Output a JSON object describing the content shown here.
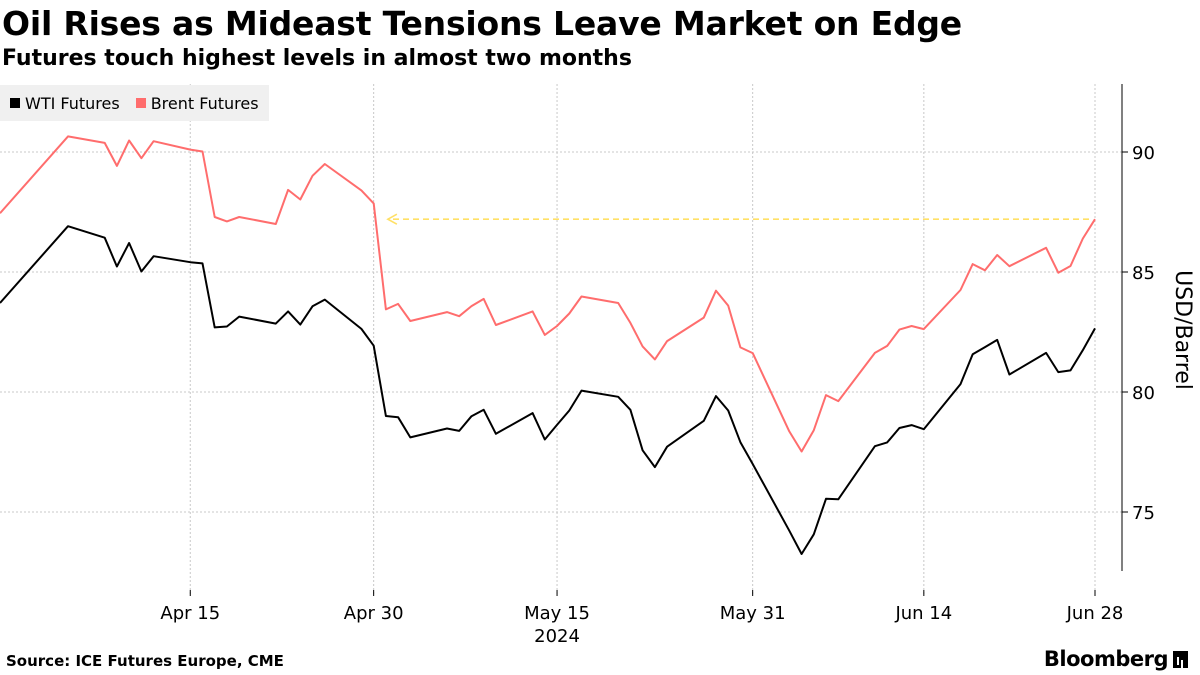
{
  "header": {
    "title": "Oil Rises as Mideast Tensions Leave Market on Edge",
    "subtitle": "Futures touch highest levels in almost two months"
  },
  "legend": {
    "items": [
      {
        "label": "WTI Futures",
        "color": "#000000"
      },
      {
        "label": "Brent Futures",
        "color": "#ff6d6d"
      }
    ]
  },
  "footer": {
    "source": "Source: ICE Futures Europe, CME",
    "brand": "Bloomberg"
  },
  "chart_data": {
    "type": "line",
    "ylabel": "USD/Barrel",
    "ylim": [
      72,
      92.5
    ],
    "yticks": [
      75,
      80,
      85,
      90
    ],
    "x_start": "2024-04-05",
    "x_end": "2024-06-28",
    "xticks": [
      {
        "date": "2024-04-15",
        "label": "Apr 15"
      },
      {
        "date": "2024-04-30",
        "label": "Apr 30"
      },
      {
        "date": "2024-05-15",
        "label": "May 15"
      },
      {
        "date": "2024-05-31",
        "label": "May 31"
      },
      {
        "date": "2024-06-14",
        "label": "Jun 14"
      },
      {
        "date": "2024-06-28",
        "label": "Jun 28"
      }
    ],
    "year_label": "2024",
    "grid": true,
    "legend_position": "top-left",
    "annotation": {
      "type": "dashed-arrow",
      "color": "#ffe066",
      "from_date": "2024-06-28",
      "to_date": "2024-05-01",
      "value": 87.2
    },
    "series": [
      {
        "name": "WTI Futures",
        "color": "#000000",
        "points": [
          [
            "2024-04-05",
            86.91
          ],
          [
            "2024-04-08",
            86.43
          ],
          [
            "2024-04-09",
            85.23
          ],
          [
            "2024-04-10",
            86.21
          ],
          [
            "2024-04-11",
            85.02
          ],
          [
            "2024-04-12",
            85.66
          ],
          [
            "2024-04-15",
            85.41
          ],
          [
            "2024-04-16",
            85.36
          ],
          [
            "2024-04-17",
            82.69
          ],
          [
            "2024-04-18",
            82.73
          ],
          [
            "2024-04-19",
            83.14
          ],
          [
            "2024-04-22",
            82.85
          ],
          [
            "2024-04-23",
            83.36
          ],
          [
            "2024-04-24",
            82.81
          ],
          [
            "2024-04-25",
            83.57
          ],
          [
            "2024-04-26",
            83.85
          ],
          [
            "2024-04-29",
            82.63
          ],
          [
            "2024-04-30",
            81.93
          ],
          [
            "2024-05-01",
            79.0
          ],
          [
            "2024-05-02",
            78.95
          ],
          [
            "2024-05-03",
            78.11
          ],
          [
            "2024-05-06",
            78.48
          ],
          [
            "2024-05-07",
            78.38
          ],
          [
            "2024-05-08",
            78.99
          ],
          [
            "2024-05-09",
            79.26
          ],
          [
            "2024-05-10",
            78.26
          ],
          [
            "2024-05-13",
            79.12
          ],
          [
            "2024-05-14",
            78.02
          ],
          [
            "2024-05-15",
            78.63
          ],
          [
            "2024-05-16",
            79.23
          ],
          [
            "2024-05-17",
            80.06
          ],
          [
            "2024-05-20",
            79.8
          ],
          [
            "2024-05-21",
            79.26
          ],
          [
            "2024-05-22",
            77.57
          ],
          [
            "2024-05-23",
            76.87
          ],
          [
            "2024-05-24",
            77.72
          ],
          [
            "2024-05-27",
            78.8
          ],
          [
            "2024-05-28",
            79.83
          ],
          [
            "2024-05-29",
            79.23
          ],
          [
            "2024-05-30",
            77.91
          ],
          [
            "2024-05-31",
            77.0
          ],
          [
            "2024-06-03",
            74.22
          ],
          [
            "2024-06-04",
            73.25
          ],
          [
            "2024-06-05",
            74.07
          ],
          [
            "2024-06-06",
            75.55
          ],
          [
            "2024-06-07",
            75.53
          ],
          [
            "2024-06-10",
            77.74
          ],
          [
            "2024-06-11",
            77.9
          ],
          [
            "2024-06-12",
            78.5
          ],
          [
            "2024-06-13",
            78.62
          ],
          [
            "2024-06-14",
            78.45
          ],
          [
            "2024-06-17",
            80.33
          ],
          [
            "2024-06-18",
            81.57
          ],
          [
            "2024-06-19",
            81.87
          ],
          [
            "2024-06-20",
            82.17
          ],
          [
            "2024-06-21",
            80.73
          ],
          [
            "2024-06-24",
            81.63
          ],
          [
            "2024-06-25",
            80.83
          ],
          [
            "2024-06-26",
            80.9
          ],
          [
            "2024-06-27",
            81.74
          ],
          [
            "2024-06-28",
            82.65
          ]
        ]
      },
      {
        "name": "Brent Futures",
        "color": "#ff6d6d",
        "points": [
          [
            "2024-04-05",
            90.65
          ],
          [
            "2024-04-08",
            90.38
          ],
          [
            "2024-04-09",
            89.42
          ],
          [
            "2024-04-10",
            90.48
          ],
          [
            "2024-04-11",
            89.74
          ],
          [
            "2024-04-12",
            90.45
          ],
          [
            "2024-04-15",
            90.1
          ],
          [
            "2024-04-16",
            90.02
          ],
          [
            "2024-04-17",
            87.29
          ],
          [
            "2024-04-18",
            87.11
          ],
          [
            "2024-04-19",
            87.29
          ],
          [
            "2024-04-22",
            87.0
          ],
          [
            "2024-04-23",
            88.42
          ],
          [
            "2024-04-24",
            88.02
          ],
          [
            "2024-04-25",
            89.01
          ],
          [
            "2024-04-26",
            89.5
          ],
          [
            "2024-04-29",
            88.4
          ],
          [
            "2024-04-30",
            87.86
          ],
          [
            "2024-05-01",
            83.44
          ],
          [
            "2024-05-02",
            83.67
          ],
          [
            "2024-05-03",
            82.96
          ],
          [
            "2024-05-06",
            83.33
          ],
          [
            "2024-05-07",
            83.16
          ],
          [
            "2024-05-08",
            83.58
          ],
          [
            "2024-05-09",
            83.88
          ],
          [
            "2024-05-10",
            82.79
          ],
          [
            "2024-05-13",
            83.36
          ],
          [
            "2024-05-14",
            82.38
          ],
          [
            "2024-05-15",
            82.75
          ],
          [
            "2024-05-16",
            83.27
          ],
          [
            "2024-05-17",
            83.98
          ],
          [
            "2024-05-20",
            83.71
          ],
          [
            "2024-05-21",
            82.88
          ],
          [
            "2024-05-22",
            81.9
          ],
          [
            "2024-05-23",
            81.36
          ],
          [
            "2024-05-24",
            82.12
          ],
          [
            "2024-05-27",
            83.1
          ],
          [
            "2024-05-28",
            84.22
          ],
          [
            "2024-05-29",
            83.6
          ],
          [
            "2024-05-30",
            81.86
          ],
          [
            "2024-05-31",
            81.62
          ],
          [
            "2024-06-03",
            78.36
          ],
          [
            "2024-06-04",
            77.52
          ],
          [
            "2024-06-05",
            78.41
          ],
          [
            "2024-06-06",
            79.87
          ],
          [
            "2024-06-07",
            79.62
          ],
          [
            "2024-06-10",
            81.63
          ],
          [
            "2024-06-11",
            81.92
          ],
          [
            "2024-06-12",
            82.6
          ],
          [
            "2024-06-13",
            82.75
          ],
          [
            "2024-06-14",
            82.62
          ],
          [
            "2024-06-17",
            84.25
          ],
          [
            "2024-06-18",
            85.33
          ],
          [
            "2024-06-19",
            85.07
          ],
          [
            "2024-06-20",
            85.71
          ],
          [
            "2024-06-21",
            85.24
          ],
          [
            "2024-06-24",
            86.01
          ],
          [
            "2024-06-25",
            84.97
          ],
          [
            "2024-06-26",
            85.25
          ],
          [
            "2024-06-27",
            86.39
          ],
          [
            "2024-06-28",
            87.2
          ]
        ]
      }
    ]
  }
}
